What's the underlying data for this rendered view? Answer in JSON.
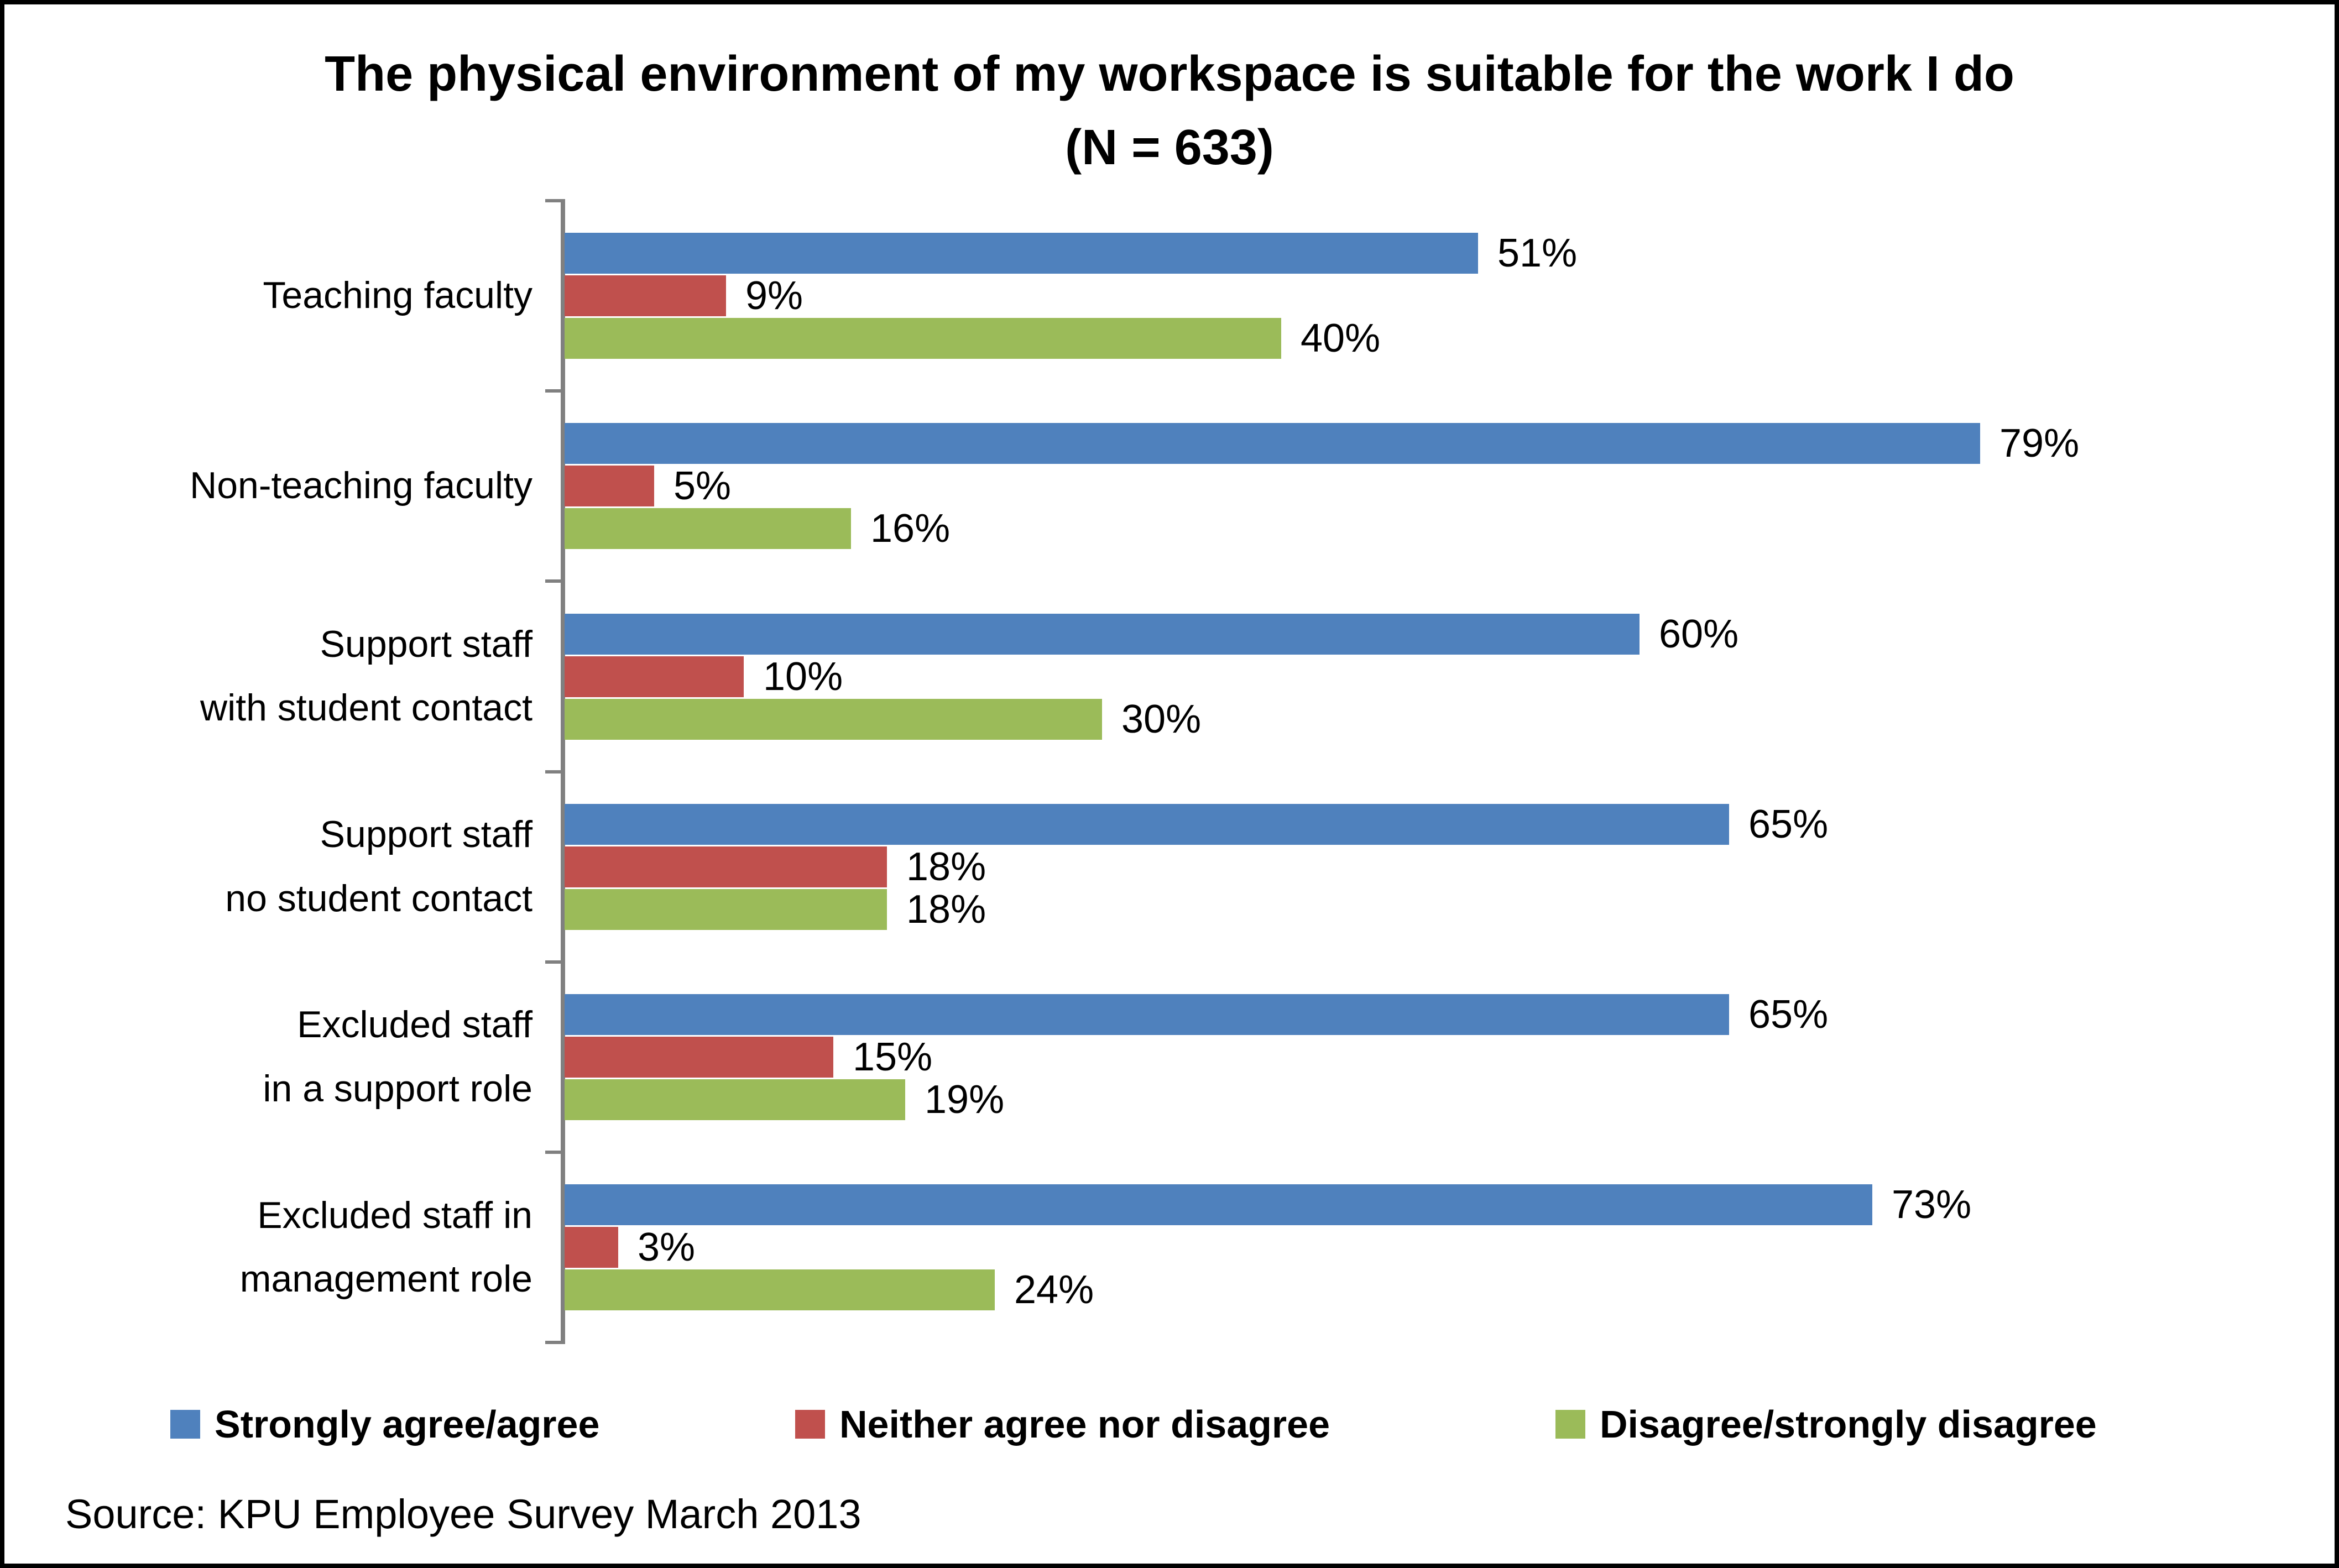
{
  "chart_data": {
    "type": "bar",
    "orientation": "horizontal",
    "title": "The physical environment of my workspace is suitable for the work I do",
    "subtitle": "(N = 633)",
    "categories": [
      "Teaching faculty",
      "Non-teaching faculty",
      "Support staff\nwith student contact",
      "Support staff\nno student contact",
      "Excluded staff\nin a support role",
      "Excluded staff in\nmanagement role"
    ],
    "series": [
      {
        "name": "Strongly agree/agree",
        "color": "#4F81BD",
        "values": [
          51,
          79,
          60,
          65,
          65,
          73
        ],
        "labels": [
          "51%",
          "79%",
          "60%",
          "65%",
          "65%",
          "73%"
        ]
      },
      {
        "name": "Neither agree nor disagree",
        "color": "#C0504D",
        "values": [
          9,
          5,
          10,
          18,
          15,
          3
        ],
        "labels": [
          "9%",
          "5%",
          "10%",
          "18%",
          "15%",
          "3%"
        ]
      },
      {
        "name": "Disagree/strongly disagree",
        "color": "#9BBB59",
        "values": [
          40,
          16,
          30,
          18,
          19,
          24
        ],
        "labels": [
          "40%",
          "16%",
          "30%",
          "18%",
          "19%",
          "24%"
        ]
      }
    ],
    "value_unit": "%",
    "xlim": [
      0,
      100
    ],
    "grid": false,
    "legend_position": "bottom",
    "axis_color": "#808080"
  },
  "source_note": "Source: KPU Employee Survey March 2013"
}
